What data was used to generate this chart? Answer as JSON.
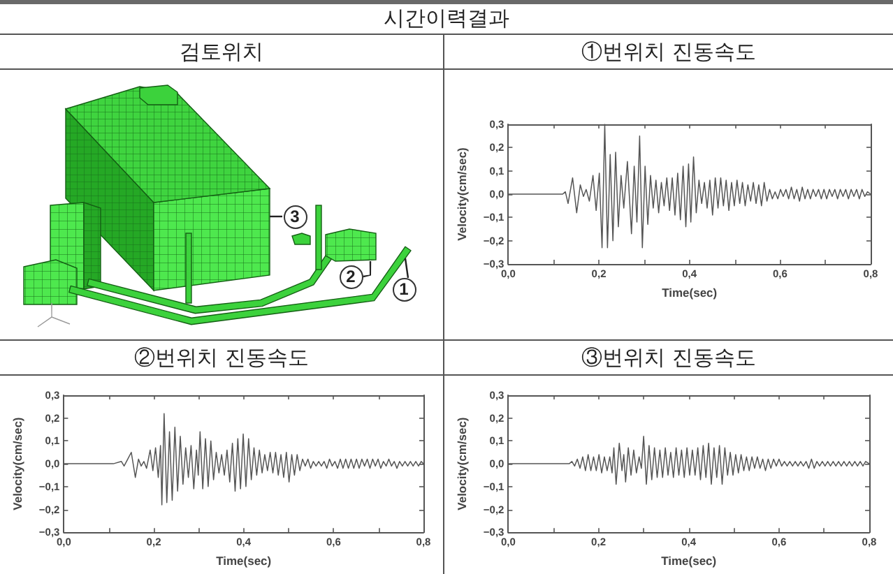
{
  "chart_data": [
    {
      "type": "other",
      "title": "시간이력결과"
    },
    {
      "type": "other",
      "title": "검토위치",
      "annotations": [
        "1",
        "2",
        "3"
      ]
    },
    {
      "type": "line",
      "title": "①번위치 진동속도",
      "xlabel": "Time(sec)",
      "ylabel": "Velocity(cm/sec)",
      "x": [
        0,
        0.12,
        0.126,
        0.132,
        0.142,
        0.151,
        0.159,
        0.166,
        0.172,
        0.179,
        0.187,
        0.194,
        0.201,
        0.207,
        0.213,
        0.219,
        0.225,
        0.231,
        0.237,
        0.243,
        0.249,
        0.255,
        0.263,
        0.272,
        0.278,
        0.284,
        0.29,
        0.296,
        0.302,
        0.308,
        0.314,
        0.32,
        0.326,
        0.332,
        0.338,
        0.344,
        0.35,
        0.356,
        0.362,
        0.368,
        0.374,
        0.38,
        0.386,
        0.392,
        0.398,
        0.403,
        0.409,
        0.415,
        0.421,
        0.427,
        0.433,
        0.439,
        0.445,
        0.451,
        0.457,
        0.463,
        0.469,
        0.475,
        0.481,
        0.487,
        0.493,
        0.499,
        0.505,
        0.511,
        0.517,
        0.523,
        0.529,
        0.535,
        0.541,
        0.547,
        0.553,
        0.559,
        0.565,
        0.571,
        0.577,
        0.583,
        0.589,
        0.595,
        0.601,
        0.607,
        0.613,
        0.619,
        0.625,
        0.631,
        0.637,
        0.643,
        0.649,
        0.655,
        0.661,
        0.667,
        0.673,
        0.679,
        0.685,
        0.691,
        0.697,
        0.703,
        0.709,
        0.715,
        0.721,
        0.727,
        0.733,
        0.739,
        0.745,
        0.751,
        0.757,
        0.763,
        0.769,
        0.775,
        0.781,
        0.787,
        0.793,
        0.8
      ],
      "series": [
        {
          "color": "#555555",
          "values": [
            0,
            0,
            0.01,
            -0.04,
            0.07,
            -0.08,
            0.04,
            -0.01,
            0.02,
            -0.03,
            0.08,
            -0.07,
            0.09,
            -0.23,
            0.3,
            -0.23,
            0.17,
            -0.2,
            0.18,
            -0.14,
            0.08,
            -0.06,
            0.14,
            -0.17,
            0.12,
            -0.12,
            0.25,
            -0.23,
            0.12,
            -0.13,
            0.08,
            -0.06,
            0.06,
            -0.08,
            0.05,
            -0.05,
            0.07,
            -0.07,
            0.07,
            -0.09,
            0.09,
            -0.11,
            0.12,
            -0.14,
            0.13,
            -0.12,
            0.16,
            -0.08,
            0.06,
            -0.04,
            0.05,
            -0.06,
            0.06,
            -0.09,
            0.07,
            -0.06,
            0.07,
            -0.05,
            0.06,
            -0.07,
            0.05,
            -0.05,
            0.06,
            -0.04,
            0.05,
            -0.05,
            0.04,
            -0.03,
            0.05,
            -0.04,
            0.04,
            -0.05,
            0.05,
            -0.03,
            0.02,
            -0.02,
            0.01,
            -0.02,
            0.02,
            -0.01,
            0.02,
            -0.02,
            0.03,
            -0.02,
            0.02,
            -0.03,
            0.03,
            -0.02,
            0.02,
            -0.02,
            0.02,
            -0.01,
            0.02,
            -0.02,
            0.02,
            -0.02,
            0.02,
            -0.01,
            0.02,
            -0.02,
            0.02,
            -0.01,
            0.02,
            -0.02,
            0.02,
            -0.01,
            0.02,
            -0.02,
            0.02,
            -0.01,
            0.01,
            0
          ]
        }
      ],
      "xlim": [
        0,
        0.8
      ],
      "ylim": [
        -0.3,
        0.3
      ],
      "xticks": [
        {
          "value": 0,
          "label": "0,0"
        },
        {
          "value": 0.1,
          "label": null
        },
        {
          "value": 0.2,
          "label": "0,2"
        },
        {
          "value": 0.3,
          "label": null
        },
        {
          "value": 0.4,
          "label": "0,4"
        },
        {
          "value": 0.5,
          "label": null
        },
        {
          "value": 0.6,
          "label": "0,6"
        },
        {
          "value": 0.7,
          "label": null
        },
        {
          "value": 0.8,
          "label": "0,8"
        }
      ],
      "yticks": [
        {
          "value": -0.3,
          "label": "−0,3"
        },
        {
          "value": -0.2,
          "label": "−0,2"
        },
        {
          "value": -0.1,
          "label": "−0,1"
        },
        {
          "value": 0,
          "label": "0,0"
        },
        {
          "value": 0.1,
          "label": "0,1"
        },
        {
          "value": 0.2,
          "label": "0,2"
        },
        {
          "value": 0.3,
          "label": "0,3"
        }
      ]
    },
    {
      "type": "line",
      "title": "②번위치 진동속도",
      "xlabel": "Time(sec)",
      "ylabel": "Velocity(cm/sec)",
      "x": [
        0,
        0.11,
        0.128,
        0.134,
        0.142,
        0.15,
        0.159,
        0.166,
        0.172,
        0.178,
        0.184,
        0.192,
        0.198,
        0.204,
        0.21,
        0.215,
        0.218,
        0.223,
        0.229,
        0.235,
        0.241,
        0.247,
        0.253,
        0.259,
        0.265,
        0.271,
        0.277,
        0.283,
        0.289,
        0.295,
        0.299,
        0.303,
        0.309,
        0.315,
        0.321,
        0.327,
        0.333,
        0.339,
        0.345,
        0.351,
        0.357,
        0.363,
        0.369,
        0.375,
        0.381,
        0.387,
        0.393,
        0.399,
        0.405,
        0.411,
        0.417,
        0.423,
        0.429,
        0.435,
        0.441,
        0.447,
        0.453,
        0.459,
        0.465,
        0.471,
        0.477,
        0.483,
        0.489,
        0.495,
        0.501,
        0.507,
        0.513,
        0.519,
        0.525,
        0.531,
        0.537,
        0.543,
        0.549,
        0.555,
        0.561,
        0.567,
        0.573,
        0.579,
        0.585,
        0.591,
        0.597,
        0.603,
        0.609,
        0.615,
        0.621,
        0.627,
        0.633,
        0.639,
        0.645,
        0.651,
        0.657,
        0.663,
        0.669,
        0.675,
        0.681,
        0.687,
        0.693,
        0.699,
        0.705,
        0.711,
        0.717,
        0.723,
        0.729,
        0.735,
        0.741,
        0.747,
        0.753,
        0.759,
        0.765,
        0.771,
        0.777,
        0.783,
        0.789,
        0.795,
        0.8
      ],
      "series": [
        {
          "color": "#555555",
          "values": [
            0,
            0,
            0.01,
            -0.01,
            0.02,
            0.05,
            -0.06,
            0.02,
            -0.01,
            0.01,
            -0.02,
            0.06,
            -0.03,
            0.07,
            -0.06,
            0.08,
            -0.18,
            0.22,
            -0.17,
            0.14,
            -0.16,
            0.16,
            -0.12,
            0.12,
            -0.09,
            0.07,
            -0.06,
            0.08,
            -0.11,
            0.06,
            -0.05,
            0.14,
            -0.11,
            0.11,
            -0.1,
            0.1,
            -0.07,
            0.05,
            -0.04,
            0.04,
            -0.05,
            0.06,
            -0.08,
            0.09,
            -0.12,
            0.11,
            -0.11,
            0.13,
            -0.1,
            0.11,
            -0.07,
            0.07,
            -0.05,
            0.06,
            -0.04,
            0.04,
            -0.03,
            0.05,
            -0.04,
            0.05,
            -0.05,
            0.04,
            -0.06,
            0.05,
            -0.08,
            0.04,
            -0.05,
            0.04,
            -0.03,
            0.02,
            -0.01,
            0.02,
            -0.02,
            0.01,
            -0.01,
            0.01,
            -0.01,
            0.01,
            -0.02,
            0.02,
            -0.01,
            0.01,
            -0.02,
            0.02,
            -0.02,
            0.02,
            -0.02,
            0.02,
            -0.02,
            0.02,
            -0.02,
            0.02,
            -0.01,
            0.02,
            -0.02,
            0.02,
            -0.01,
            0.02,
            -0.02,
            0.01,
            -0.01,
            0.02,
            -0.01,
            0.01,
            -0.02,
            0.01,
            -0.01,
            0.01,
            -0.01,
            0.01,
            -0.01,
            0.01,
            -0.01,
            0.01,
            0
          ]
        }
      ],
      "xlim": [
        0,
        0.8
      ],
      "ylim": [
        -0.3,
        0.3
      ],
      "xticks": [
        {
          "value": 0,
          "label": "0,0"
        },
        {
          "value": 0.1,
          "label": null
        },
        {
          "value": 0.2,
          "label": "0,2"
        },
        {
          "value": 0.3,
          "label": null
        },
        {
          "value": 0.4,
          "label": "0,4"
        },
        {
          "value": 0.5,
          "label": null
        },
        {
          "value": 0.6,
          "label": "0,6"
        },
        {
          "value": 0.7,
          "label": null
        },
        {
          "value": 0.8,
          "label": "0,8"
        }
      ],
      "yticks": [
        {
          "value": -0.3,
          "label": "−0,3"
        },
        {
          "value": -0.2,
          "label": "−0,2"
        },
        {
          "value": -0.1,
          "label": "−0,1"
        },
        {
          "value": 0,
          "label": "0,0"
        },
        {
          "value": 0.1,
          "label": "0,1"
        },
        {
          "value": 0.2,
          "label": "0,2"
        },
        {
          "value": 0.3,
          "label": "0,3"
        }
      ]
    },
    {
      "type": "line",
      "title": "③번위치 진동속도",
      "xlabel": "Time(sec)",
      "ylabel": "Velocity(cm/sec)",
      "x": [
        0,
        0.135,
        0.141,
        0.147,
        0.153,
        0.159,
        0.165,
        0.171,
        0.177,
        0.183,
        0.189,
        0.195,
        0.201,
        0.207,
        0.213,
        0.219,
        0.225,
        0.23,
        0.234,
        0.239,
        0.246,
        0.252,
        0.256,
        0.26,
        0.266,
        0.272,
        0.278,
        0.284,
        0.29,
        0.295,
        0.3,
        0.306,
        0.312,
        0.318,
        0.324,
        0.33,
        0.336,
        0.342,
        0.348,
        0.354,
        0.36,
        0.366,
        0.372,
        0.378,
        0.384,
        0.39,
        0.396,
        0.402,
        0.408,
        0.414,
        0.42,
        0.426,
        0.432,
        0.438,
        0.444,
        0.45,
        0.456,
        0.462,
        0.468,
        0.474,
        0.48,
        0.486,
        0.492,
        0.498,
        0.504,
        0.51,
        0.516,
        0.522,
        0.528,
        0.534,
        0.54,
        0.546,
        0.552,
        0.558,
        0.564,
        0.57,
        0.576,
        0.582,
        0.588,
        0.594,
        0.6,
        0.606,
        0.612,
        0.618,
        0.624,
        0.63,
        0.636,
        0.642,
        0.648,
        0.654,
        0.66,
        0.666,
        0.672,
        0.678,
        0.684,
        0.69,
        0.696,
        0.702,
        0.708,
        0.714,
        0.72,
        0.726,
        0.732,
        0.738,
        0.744,
        0.75,
        0.756,
        0.762,
        0.768,
        0.774,
        0.78,
        0.786,
        0.792,
        0.8
      ],
      "series": [
        {
          "color": "#555555",
          "values": [
            0,
            0,
            0.01,
            -0.01,
            0.02,
            -0.02,
            0.03,
            -0.03,
            0.04,
            -0.03,
            0.03,
            -0.03,
            0.04,
            -0.04,
            0.03,
            -0.03,
            0.03,
            -0.04,
            0.07,
            -0.09,
            0.09,
            -0.03,
            0.04,
            -0.08,
            0.07,
            -0.05,
            0.06,
            -0.04,
            0.03,
            -0.02,
            0.12,
            -0.09,
            0.08,
            -0.07,
            0.07,
            -0.06,
            0.06,
            -0.06,
            0.07,
            -0.05,
            0.05,
            -0.06,
            0.07,
            -0.05,
            0.06,
            -0.06,
            0.07,
            -0.05,
            0.06,
            -0.05,
            0.07,
            -0.07,
            0.08,
            -0.06,
            0.09,
            -0.09,
            0.07,
            -0.06,
            0.08,
            -0.09,
            0.07,
            -0.05,
            0.05,
            -0.05,
            0.04,
            -0.04,
            0.04,
            -0.03,
            0.03,
            -0.03,
            0.03,
            -0.02,
            0.03,
            -0.02,
            0.02,
            -0.03,
            0.02,
            -0.02,
            0.02,
            -0.01,
            0.02,
            -0.01,
            0.01,
            -0.01,
            0.01,
            -0.01,
            0.01,
            -0.01,
            0.01,
            -0.01,
            0.01,
            -0.02,
            0.02,
            -0.02,
            0.01,
            -0.01,
            0.01,
            -0.01,
            0.01,
            -0.01,
            0.01,
            -0.01,
            0.01,
            -0.01,
            0.01,
            -0.01,
            0.01,
            -0.01,
            0.01,
            -0.01,
            0.01,
            -0.01,
            0.01,
            0
          ]
        }
      ],
      "xlim": [
        0,
        0.8
      ],
      "ylim": [
        -0.3,
        0.3
      ],
      "xticks": [
        {
          "value": 0,
          "label": "0,0"
        },
        {
          "value": 0.1,
          "label": null
        },
        {
          "value": 0.2,
          "label": "0,2"
        },
        {
          "value": 0.3,
          "label": null
        },
        {
          "value": 0.4,
          "label": "0,4"
        },
        {
          "value": 0.5,
          "label": null
        },
        {
          "value": 0.6,
          "label": "0,6"
        },
        {
          "value": 0.7,
          "label": null
        },
        {
          "value": 0.8,
          "label": "0,8"
        }
      ],
      "yticks": [
        {
          "value": -0.3,
          "label": "−0,3"
        },
        {
          "value": -0.2,
          "label": "−0,2"
        },
        {
          "value": -0.1,
          "label": "−0,1"
        },
        {
          "value": 0,
          "label": "0,0"
        },
        {
          "value": 0.1,
          "label": "0,1"
        },
        {
          "value": 0.2,
          "label": "0,2"
        },
        {
          "value": 0.3,
          "label": "0,3"
        }
      ]
    }
  ]
}
